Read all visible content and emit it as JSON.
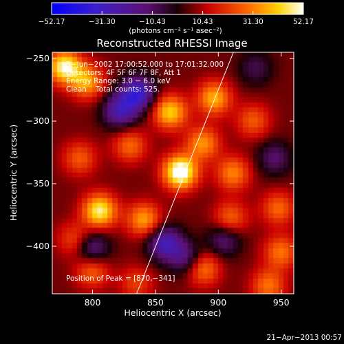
{
  "chart_data": {
    "type": "heatmap",
    "title": "Reconstructed RHESSI Image",
    "xlabel": "Heliocentric X (arcsec)",
    "ylabel": "Heliocentric Y (arcsec)",
    "xlim": [
      768,
      960
    ],
    "ylim": [
      -438,
      -245
    ],
    "x_ticks": [
      800,
      850,
      900,
      950
    ],
    "x_tick_labels": [
      "800",
      "850",
      "900",
      "950"
    ],
    "y_ticks": [
      -250,
      -300,
      -350,
      -400
    ],
    "y_tick_labels": [
      "−250",
      "−300",
      "−350",
      "−400"
    ],
    "colorbar": {
      "min": -52.17,
      "max": 52.17,
      "tick_values": [
        -52.17,
        -31.3,
        -10.43,
        10.43,
        31.3,
        52.17
      ],
      "tick_labels": [
        "−52.17",
        "−31.30",
        "−10.43",
        "10.43",
        "31.30",
        "52.17"
      ],
      "units_label": "(photons cm⁻² s⁻¹ asec⁻²)"
    },
    "annotations": [
      "3−Jun−2002 17:00:52.000 to 17:01:32.000",
      "Detectors: 4F 5F 6F 7F 8F, Att 1",
      "Energy Range: 3.0 − 6.0 keV",
      "Clean    Total counts: 525."
    ],
    "peak_label": "Position of Peak = [870,−341]",
    "limb_line": [
      [
        835,
        -438
      ],
      [
        912,
        -245
      ]
    ],
    "sources": [
      {
        "x": 870,
        "y": -341,
        "amp": 52
      },
      {
        "x": 806,
        "y": -372,
        "amp": 42
      },
      {
        "x": 778,
        "y": -257,
        "amp": 44
      },
      {
        "x": 796,
        "y": -269,
        "amp": 30
      },
      {
        "x": 841,
        "y": -379,
        "amp": 30
      },
      {
        "x": 862,
        "y": -293,
        "amp": 36
      },
      {
        "x": 897,
        "y": -282,
        "amp": 32
      },
      {
        "x": 888,
        "y": -318,
        "amp": 28
      },
      {
        "x": 912,
        "y": -342,
        "amp": 26
      },
      {
        "x": 928,
        "y": -300,
        "amp": 20
      },
      {
        "x": 948,
        "y": -370,
        "amp": 22
      },
      {
        "x": 950,
        "y": -405,
        "amp": 24
      },
      {
        "x": 910,
        "y": -378,
        "amp": 22
      },
      {
        "x": 888,
        "y": -418,
        "amp": 26
      },
      {
        "x": 940,
        "y": -432,
        "amp": 24
      },
      {
        "x": 830,
        "y": -320,
        "amp": 22
      },
      {
        "x": 790,
        "y": -330,
        "amp": 20
      },
      {
        "x": 800,
        "y": -420,
        "amp": 22
      },
      {
        "x": 786,
        "y": -395,
        "amp": 18
      },
      {
        "x": 835,
        "y": -430,
        "amp": 16
      },
      {
        "x": 836,
        "y": -278,
        "amp": -40
      },
      {
        "x": 822,
        "y": -292,
        "amp": -32
      },
      {
        "x": 858,
        "y": -398,
        "amp": -34
      },
      {
        "x": 875,
        "y": -410,
        "amp": -22
      },
      {
        "x": 800,
        "y": -402,
        "amp": -24
      },
      {
        "x": 930,
        "y": -258,
        "amp": -14
      },
      {
        "x": 945,
        "y": -330,
        "amp": -18
      },
      {
        "x": 905,
        "y": -395,
        "amp": -20
      }
    ],
    "colors": {
      "text": "#ffffff",
      "limb_line": "#ffffff"
    }
  },
  "footer": {
    "date_stamp": "21−Apr−2013 00:57"
  }
}
